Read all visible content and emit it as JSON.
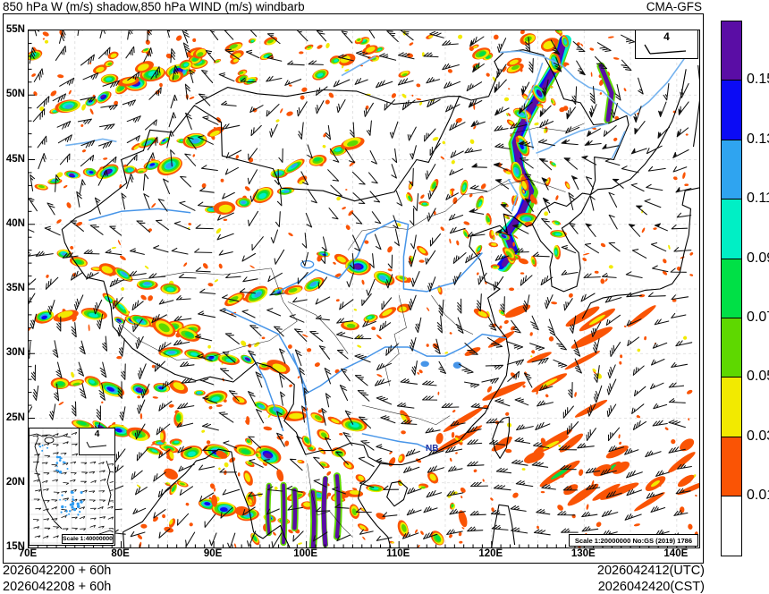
{
  "title": "850 hPa W (m/s) shadow,850 hPa WIND (m/s) windbarb",
  "model": "CMA-GFS",
  "axes": {
    "lat_ticks": [
      "55N",
      "50N",
      "45N",
      "40N",
      "35N",
      "30N",
      "25N",
      "20N",
      "15N"
    ],
    "lon_ticks": [
      "70E",
      "80E",
      "90E",
      "100E",
      "110E",
      "120E",
      "130E",
      "140E"
    ]
  },
  "colorbar": {
    "tick_labels": [
      "0.15",
      "0.13",
      "0.11",
      "0.09",
      "0.07",
      "0.05",
      "0.03",
      "0.01"
    ],
    "colors_top_to_bottom": [
      "#5A0DA5",
      "#0B0BF5",
      "#2FA4F0",
      "#00EFC5",
      "#00E046",
      "#5ED800",
      "#F2EA00",
      "#FA5405",
      "#FFFFFF"
    ]
  },
  "wind_barb_legend": {
    "value": "4"
  },
  "inset": {
    "legend_value": "4",
    "scale_text": "Scale 1:40000000"
  },
  "map_scale_text": "Scale 1:20000000 No:GS (2019) 1786",
  "map_labels": [
    {
      "text": "NB"
    }
  ],
  "footer": {
    "init_utc": "2026042200 + 60h",
    "init_cst": "2026042208 + 60h",
    "valid_utc": "2026042412(UTC)",
    "valid_cst": "2026042420(CST)"
  }
}
